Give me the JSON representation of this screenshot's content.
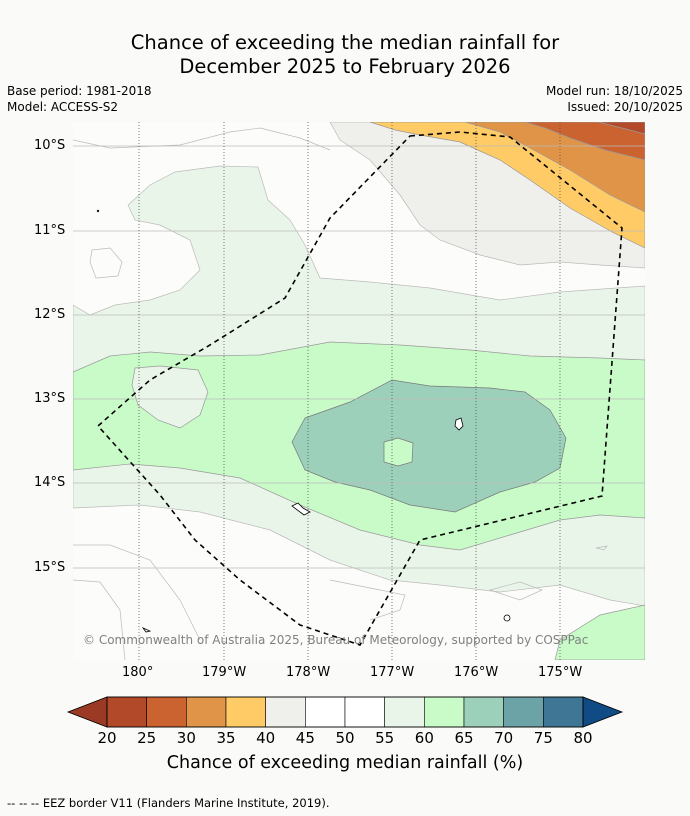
{
  "title_line1": "Chance of exceeding the median rainfall for",
  "title_line2": "December 2025 to February 2026",
  "base_period": "Base period: 1981-2018",
  "model": "Model: ACCESS-S2",
  "model_run": "Model run: 18/10/2025",
  "issued": "Issued: 20/10/2025",
  "copyright": "© Commonwealth of Australia 2025, Bureau of Meteorology, supported by COSPPac",
  "lat_labels": [
    "10°S",
    "11°S",
    "12°S",
    "13°S",
    "14°S",
    "15°S"
  ],
  "lon_labels": [
    "180°",
    "179°W",
    "178°W",
    "177°W",
    "176°W",
    "175°W"
  ],
  "colorbar": {
    "ticks": [
      "20",
      "25",
      "30",
      "35",
      "40",
      "45",
      "50",
      "55",
      "60",
      "65",
      "70",
      "75",
      "80"
    ],
    "colors": [
      "#b24a2a",
      "#cb6331",
      "#e09448",
      "#fecb66",
      "#efefeb",
      "#ffffff",
      "#ffffff",
      "#eaf5ea",
      "#c9fbc9",
      "#9cd0bb",
      "#6ca3a6",
      "#3f7595"
    ],
    "under_color": "#9a3a24",
    "over_color": "#114b85",
    "label": "Chance of exceeding median rainfall (%)"
  },
  "footnote": "--  --  -- EEZ border V11 (Flanders Marine Institute, 2019)."
}
